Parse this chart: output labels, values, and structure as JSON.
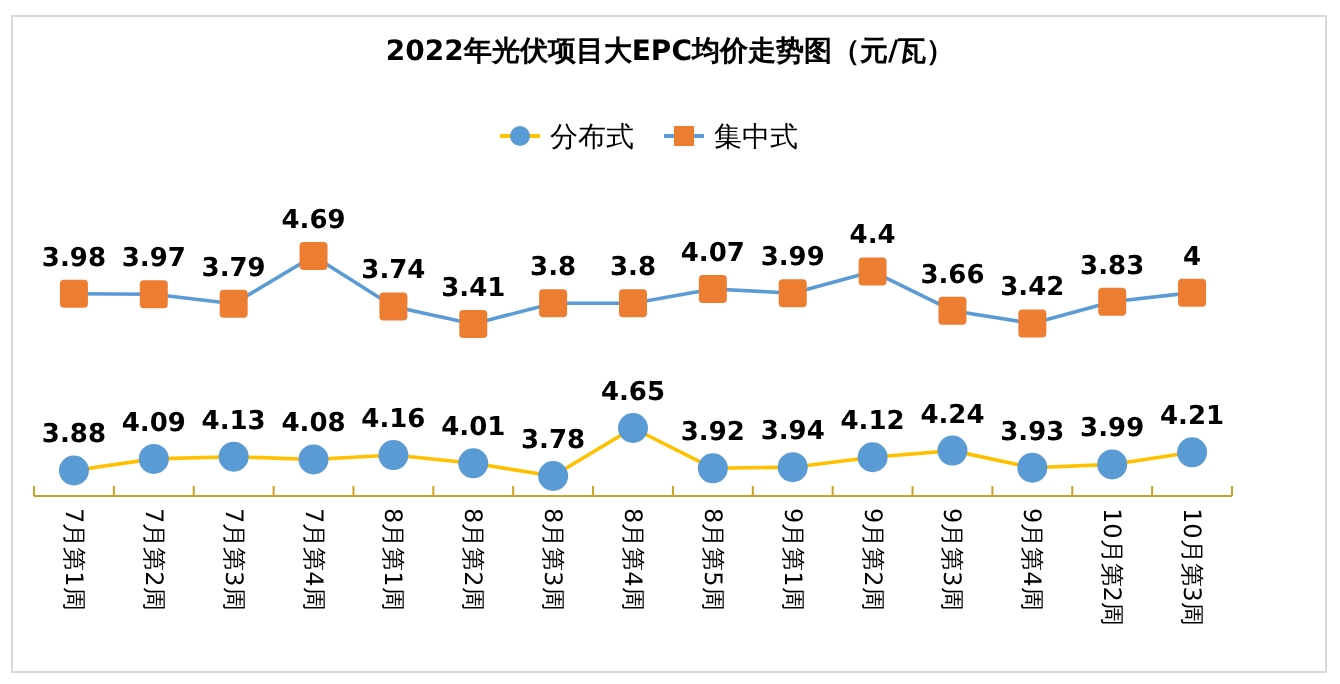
{
  "chart_data": [
    {
      "type": "line",
      "title": "2022年光伏项目大EPC均价走势图（元/瓦）",
      "categories": [
        null,
        null,
        null,
        null,
        null,
        null,
        null,
        null,
        null,
        null,
        null,
        null,
        null,
        null,
        null
      ],
      "tick_labels": false,
      "series": [
        {
          "name": "集中式",
          "color": "#5b9bd5",
          "colors": [
            "#ed7d31",
            "#ed7d31",
            "#ed7d31",
            "#ed7d31",
            "#ed7d31",
            "#ed7d31",
            "#ed7d31",
            "#ed7d31",
            "#ed7d31",
            "#ed7d31",
            "#ed7d31",
            "#ed7d31",
            "#ed7d31",
            "#ed7d31",
            "#ed7d31"
          ],
          "marker": "square",
          "values": [
            3.98,
            3.97,
            3.79,
            4.69,
            3.74,
            3.41,
            3.8,
            3.8,
            4.07,
            3.99,
            4.4,
            3.66,
            3.42,
            3.83,
            4
          ]
        }
      ],
      "data_labels": true,
      "legend": "top"
    },
    {
      "type": "line",
      "categories": [
        "7月第1周",
        "7月第2周",
        "7月第3周",
        "7月第4周",
        "8月第1周",
        "8月第2周",
        "8月第3周",
        "8月第4周",
        "8月第5周",
        "9月第1周",
        "9月第2周",
        "9月第3周",
        "9月第4周",
        "10月第2周",
        "10月第3周"
      ],
      "series": [
        {
          "name": "分布式",
          "color": "#ffc000",
          "colors": [
            "#5b9bd5",
            "#5b9bd5",
            "#5b9bd5",
            "#5b9bd5",
            "#5b9bd5",
            "#5b9bd5",
            "#5b9bd5",
            "#5b9bd5",
            "#5b9bd5",
            "#5b9bd5",
            "#5b9bd5",
            "#5b9bd5",
            "#5b9bd5",
            "#5b9bd5",
            "#5b9bd5"
          ],
          "marker": "circle",
          "values": [
            3.88,
            4.09,
            4.13,
            4.08,
            4.16,
            4.01,
            3.78,
            4.65,
            3.92,
            3.94,
            4.12,
            4.24,
            3.93,
            3.99,
            4.21
          ]
        }
      ],
      "data_labels": true,
      "legend": "top"
    }
  ]
}
